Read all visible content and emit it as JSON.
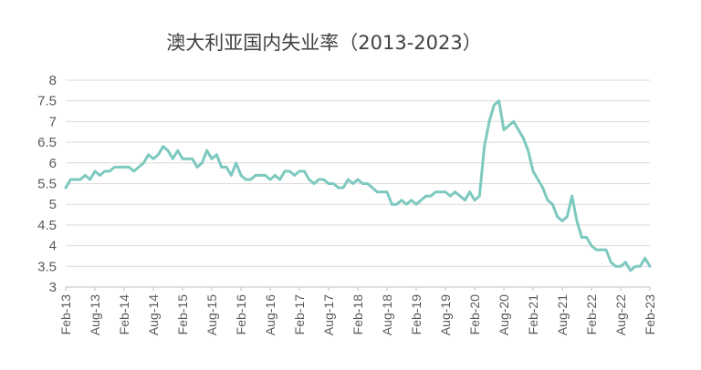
{
  "chart_data": {
    "type": "line",
    "title": "澳大利亚国内失业率（2013-2023）",
    "xlabel": "",
    "ylabel": "",
    "ylim": [
      3,
      8
    ],
    "y_ticks": [
      "8",
      "7.5",
      "7",
      "6.5",
      "6",
      "5.5",
      "5",
      "4.5",
      "4",
      "3.5",
      "3"
    ],
    "x_ticks": [
      "Feb-13",
      "Aug-13",
      "Feb-14",
      "Aug-14",
      "Feb-15",
      "Aug-15",
      "Feb-16",
      "Aug-16",
      "Feb-17",
      "Aug-17",
      "Feb-18",
      "Aug-18",
      "Feb-19",
      "Aug-19",
      "Feb-20",
      "Aug-20",
      "Feb-21",
      "Aug-21",
      "Feb-22",
      "Aug-22",
      "Feb-23"
    ],
    "x_start": "Feb-13",
    "x_end": "Feb-23",
    "grid": true,
    "legend": "none",
    "line_color": "#7dc9bf",
    "series": [
      {
        "values": [
          5.4,
          5.6,
          5.6,
          5.6,
          5.7,
          5.6,
          5.8,
          5.7,
          5.8,
          5.8,
          5.9,
          5.9,
          5.9,
          5.9,
          5.8,
          5.9,
          6.0,
          6.2,
          6.1,
          6.2,
          6.4,
          6.3,
          6.1,
          6.3,
          6.1,
          6.1,
          6.1,
          5.9,
          6.0,
          6.3,
          6.1,
          6.2,
          5.9,
          5.9,
          5.7,
          6.0,
          5.7,
          5.6,
          5.6,
          5.7,
          5.7,
          5.7,
          5.6,
          5.7,
          5.6,
          5.8,
          5.8,
          5.7,
          5.8,
          5.8,
          5.6,
          5.5,
          5.6,
          5.6,
          5.5,
          5.5,
          5.4,
          5.4,
          5.6,
          5.5,
          5.6,
          5.5,
          5.5,
          5.4,
          5.3,
          5.3,
          5.3,
          5.0,
          5.0,
          5.1,
          5.0,
          5.1,
          5.0,
          5.1,
          5.2,
          5.2,
          5.3,
          5.3,
          5.3,
          5.2,
          5.3,
          5.2,
          5.1,
          5.3,
          5.1,
          5.2,
          6.4,
          7.0,
          7.4,
          7.5,
          6.8,
          6.9,
          7.0,
          6.8,
          6.6,
          6.3,
          5.8,
          5.6,
          5.4,
          5.1,
          5.0,
          4.7,
          4.6,
          4.7,
          5.2,
          4.6,
          4.2,
          4.2,
          4.0,
          3.9,
          3.9,
          3.9,
          3.6,
          3.5,
          3.5,
          3.6,
          3.4,
          3.5,
          3.5,
          3.7,
          3.5
        ]
      }
    ]
  }
}
